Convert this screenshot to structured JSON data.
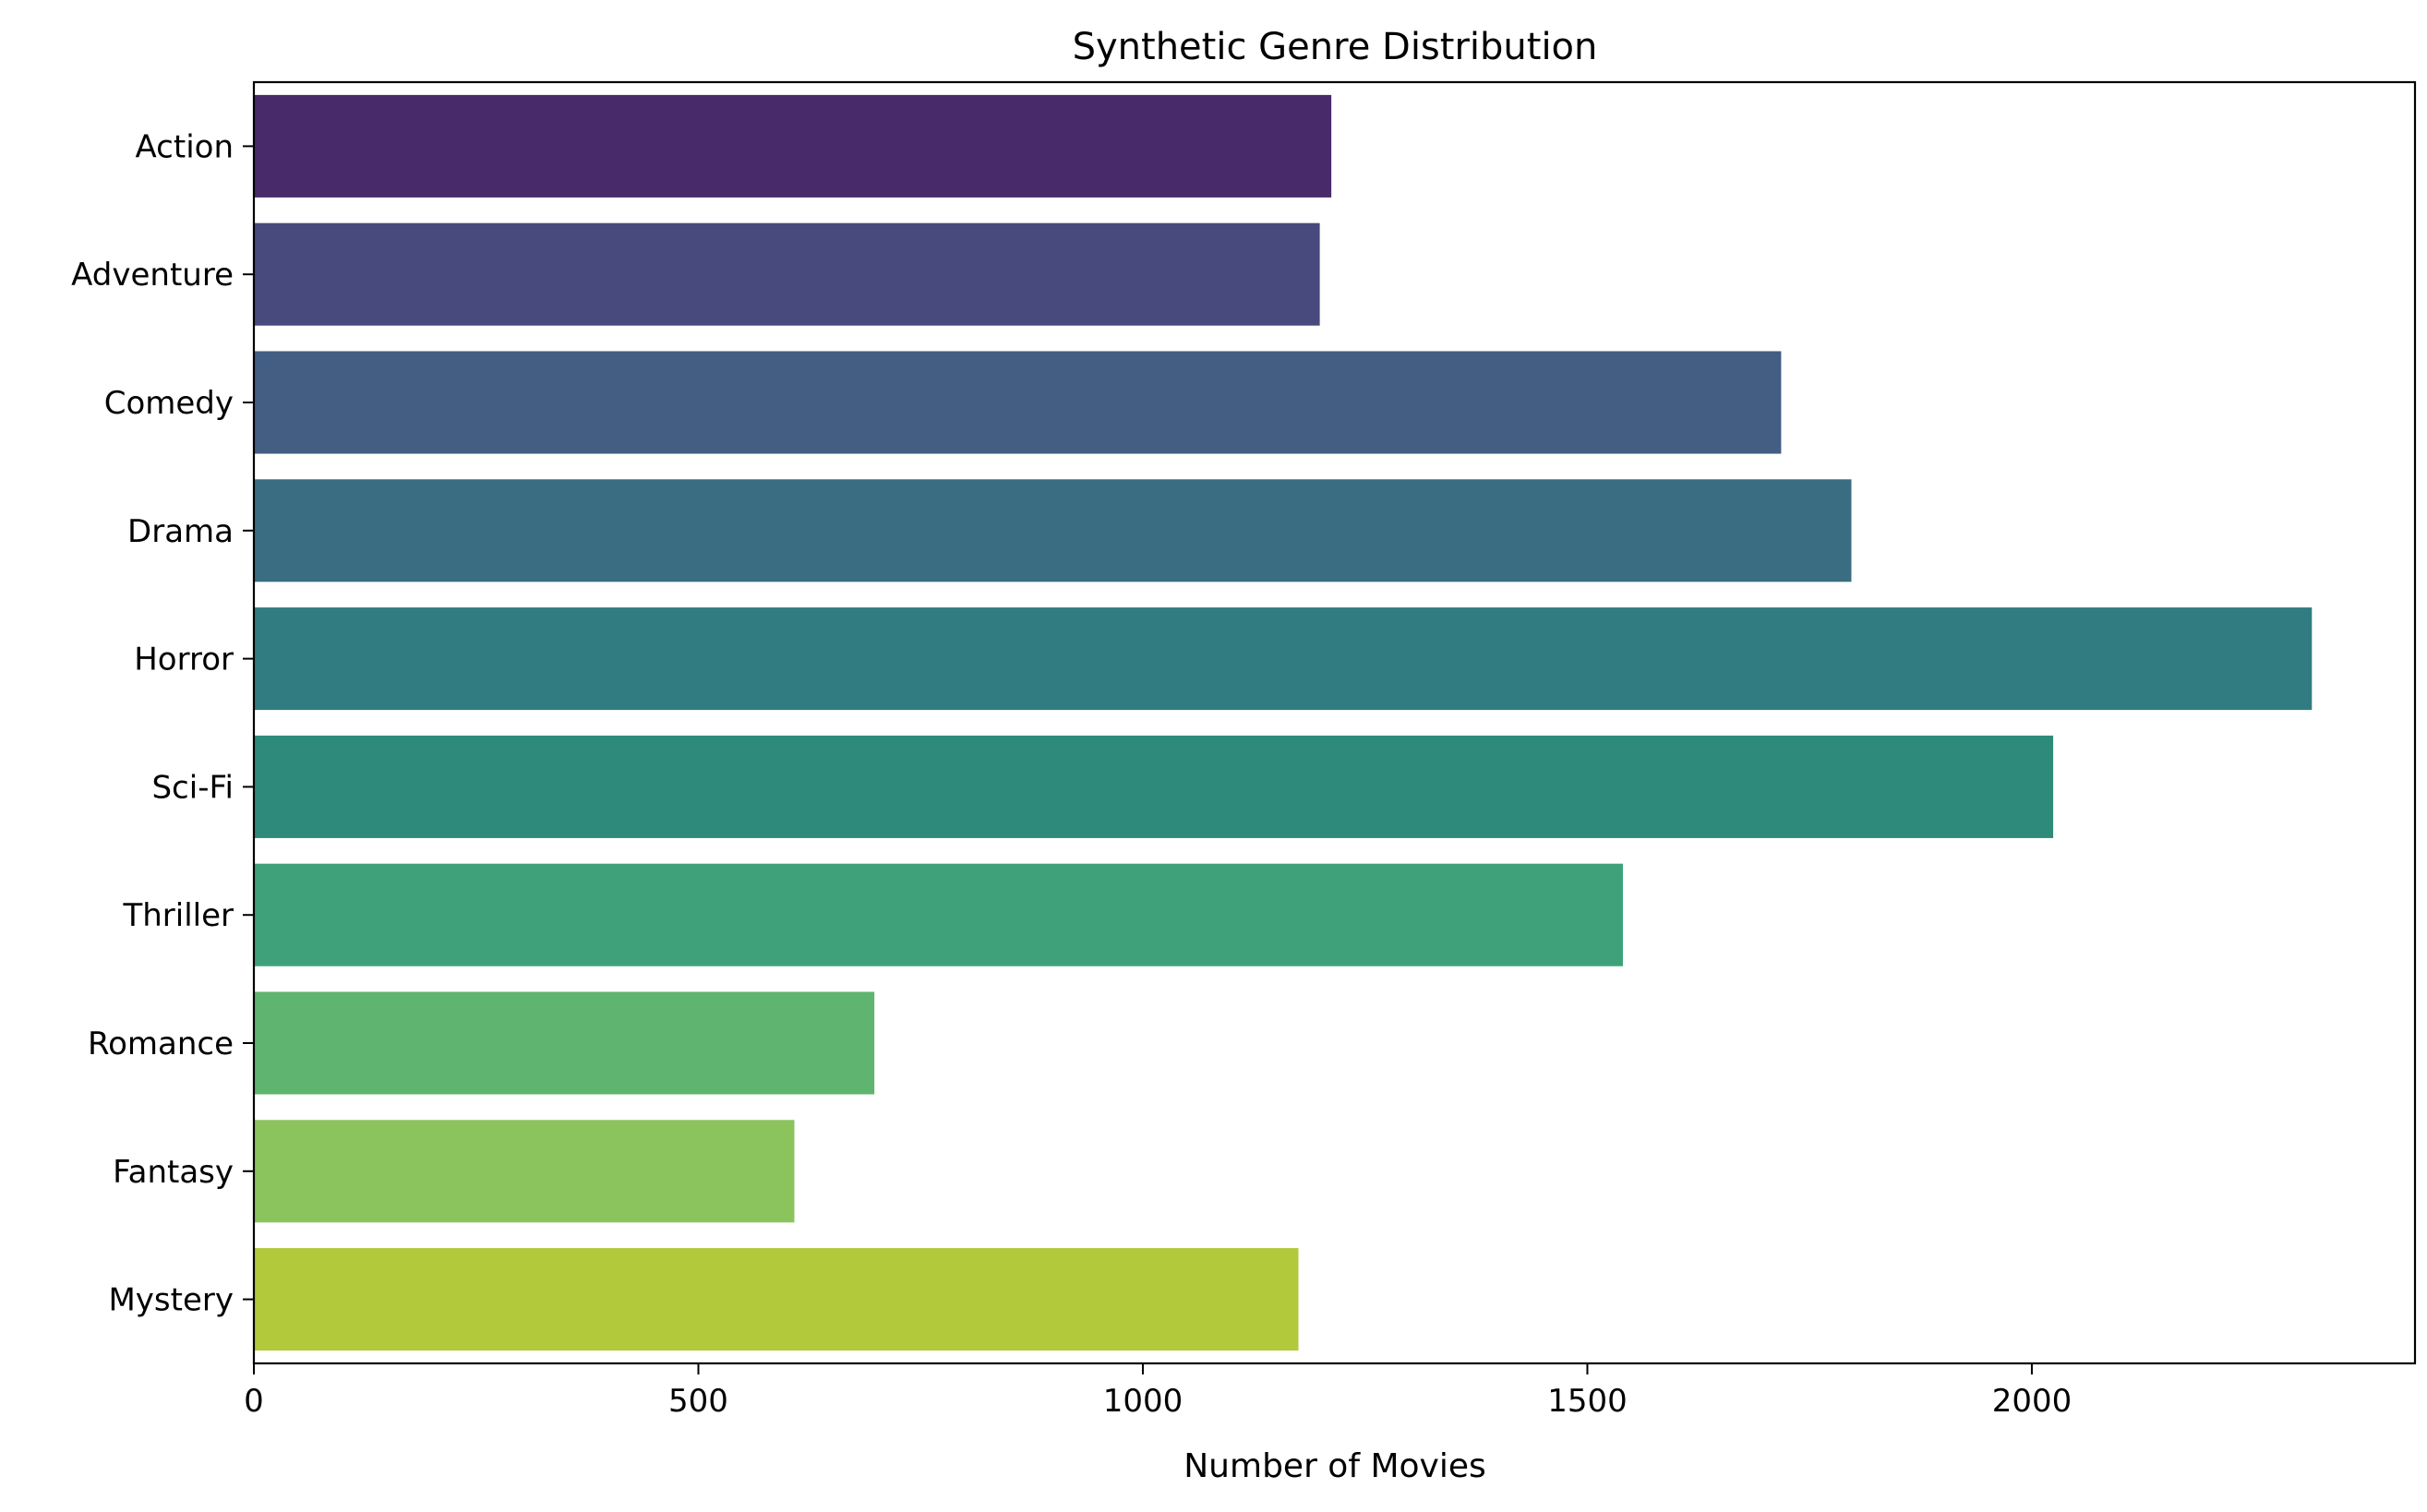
{
  "chart_data": {
    "type": "bar",
    "orientation": "horizontal",
    "title": "Synthetic Genre Distribution",
    "xlabel": "Number of Movies",
    "ylabel": "",
    "categories": [
      "Action",
      "Adventure",
      "Comedy",
      "Drama",
      "Horror",
      "Sci-Fi",
      "Thriller",
      "Romance",
      "Fantasy",
      "Mystery"
    ],
    "values": [
      1212,
      1199,
      1718,
      1797,
      2315,
      2024,
      1540,
      698,
      608,
      1175
    ],
    "colors": [
      "#482a6b",
      "#48497d",
      "#435d83",
      "#3a6c82",
      "#317c80",
      "#2e8b7c",
      "#3ea17a",
      "#5fb46f",
      "#8bc35d",
      "#b1c93b"
    ],
    "xlim": [
      0,
      2431
    ],
    "xticks": [
      0,
      500,
      1000,
      1500,
      2000
    ],
    "xtick_labels": [
      "0",
      "500",
      "1000",
      "1500",
      "2000"
    ],
    "grid": false,
    "legend": "none"
  }
}
